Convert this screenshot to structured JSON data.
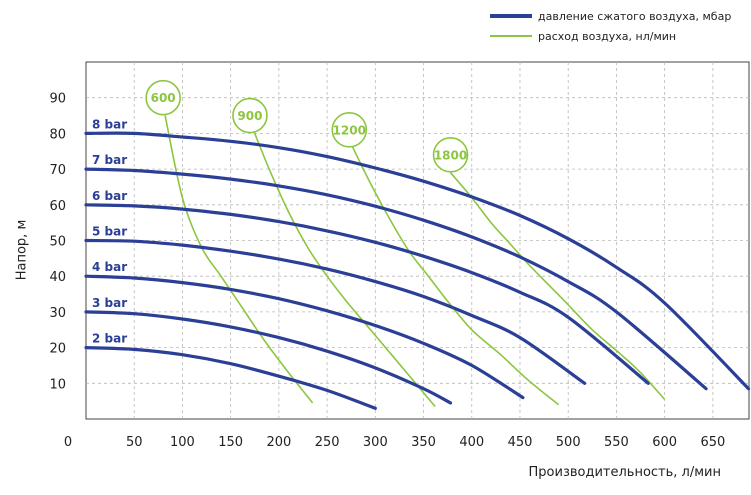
{
  "legend": {
    "pressure_label": "давление сжатого воздуха, мбар",
    "flow_label": "расход воздуха, нл/мин"
  },
  "colors": {
    "pressure": "#2a3f95",
    "flow": "#8cc63f",
    "grid": "#b8b8b8",
    "axis": "#444444"
  },
  "chart_data": {
    "type": "line",
    "xlabel": "Производительность, л/мин",
    "ylabel": "Напор, м",
    "xlim": [
      0,
      690
    ],
    "ylim": [
      0,
      100
    ],
    "x_ticks": [
      0,
      50,
      100,
      150,
      200,
      250,
      300,
      350,
      400,
      450,
      500,
      550,
      600,
      650
    ],
    "y_ticks": [
      10,
      20,
      30,
      40,
      50,
      60,
      70,
      80,
      90
    ],
    "grid": true,
    "legend_position": "top-right",
    "series": [
      {
        "name": "2 bar",
        "group": "pressure",
        "x": [
          0,
          50,
          100,
          150,
          200,
          250,
          300
        ],
        "y": [
          20,
          19.5,
          18,
          15.5,
          12,
          8,
          3
        ]
      },
      {
        "name": "3 bar",
        "group": "pressure",
        "x": [
          0,
          50,
          100,
          150,
          200,
          250,
          300,
          350,
          378
        ],
        "y": [
          30,
          29.5,
          28,
          25.8,
          22.8,
          19,
          14.3,
          8.5,
          4.5
        ]
      },
      {
        "name": "4 bar",
        "group": "pressure",
        "x": [
          0,
          50,
          100,
          150,
          200,
          250,
          300,
          350,
          400,
          453
        ],
        "y": [
          40,
          39.5,
          38.2,
          36.3,
          33.7,
          30.3,
          26.2,
          21.2,
          15,
          6
        ]
      },
      {
        "name": "5 bar",
        "group": "pressure",
        "x": [
          0,
          50,
          100,
          150,
          200,
          250,
          300,
          350,
          400,
          450,
          517
        ],
        "y": [
          50,
          49.8,
          48.7,
          47,
          44.8,
          42,
          38.5,
          34.3,
          29,
          22.8,
          10
        ]
      },
      {
        "name": "6 bar",
        "group": "pressure",
        "x": [
          0,
          50,
          100,
          150,
          200,
          250,
          300,
          350,
          400,
          450,
          500,
          583
        ],
        "y": [
          60,
          59.7,
          58.8,
          57.3,
          55.3,
          52.7,
          49.5,
          45.6,
          41,
          35.5,
          28.5,
          10
        ]
      },
      {
        "name": "7 bar",
        "group": "pressure",
        "x": [
          0,
          50,
          100,
          150,
          200,
          250,
          300,
          350,
          400,
          450,
          500,
          550,
          643
        ],
        "y": [
          70,
          69.6,
          68.6,
          67.2,
          65.3,
          62.8,
          59.6,
          55.7,
          51,
          45.4,
          38.5,
          30,
          8.5
        ]
      },
      {
        "name": "8 bar",
        "group": "pressure",
        "x": [
          0,
          50,
          100,
          150,
          200,
          250,
          300,
          350,
          400,
          450,
          500,
          550,
          600,
          687
        ],
        "y": [
          80,
          80,
          79,
          77.8,
          76,
          73.5,
          70.3,
          66.6,
          62.2,
          57,
          50.5,
          42.5,
          32.5,
          8.5
        ]
      },
      {
        "name": "600",
        "group": "flow",
        "x": [
          82,
          100,
          120,
          140,
          160,
          185,
          210,
          235
        ],
        "y": [
          85,
          62,
          48,
          40,
          32,
          22,
          13,
          4.5
        ]
      },
      {
        "name": "900",
        "group": "flow",
        "x": [
          172,
          190,
          210,
          230,
          250,
          270,
          295,
          320,
          362
        ],
        "y": [
          82,
          70,
          58,
          48,
          40,
          33,
          25,
          17,
          3.5
        ]
      },
      {
        "name": "1200",
        "group": "flow",
        "x": [
          275,
          295,
          315,
          335,
          355,
          375,
          400,
          430,
          458,
          490
        ],
        "y": [
          77,
          66,
          56,
          47,
          40,
          33,
          25,
          18,
          11,
          4
        ]
      },
      {
        "name": "1800",
        "group": "flow",
        "x": [
          378,
          400,
          420,
          440,
          460,
          480,
          500,
          525,
          555,
          575,
          600
        ],
        "y": [
          69,
          62,
          55,
          49,
          43,
          37.5,
          32,
          25,
          18,
          13,
          5.5
        ]
      }
    ],
    "flow_label_positions": {
      "600": [
        80,
        90
      ],
      "900": [
        170,
        85
      ],
      "1200": [
        273,
        81
      ],
      "1800": [
        378,
        74
      ]
    }
  }
}
